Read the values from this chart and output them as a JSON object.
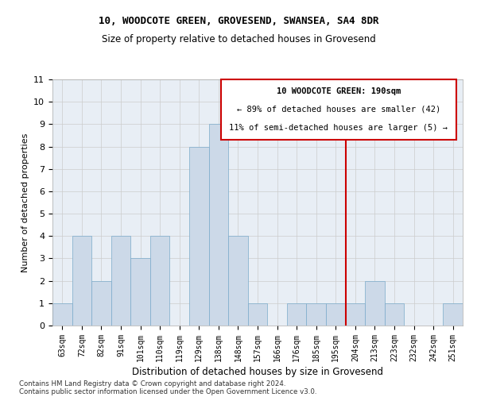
{
  "title1": "10, WOODCOTE GREEN, GROVESEND, SWANSEA, SA4 8DR",
  "title2": "Size of property relative to detached houses in Grovesend",
  "xlabel": "Distribution of detached houses by size in Grovesend",
  "ylabel": "Number of detached properties",
  "categories": [
    "63sqm",
    "72sqm",
    "82sqm",
    "91sqm",
    "101sqm",
    "110sqm",
    "119sqm",
    "129sqm",
    "138sqm",
    "148sqm",
    "157sqm",
    "166sqm",
    "176sqm",
    "185sqm",
    "195sqm",
    "204sqm",
    "213sqm",
    "223sqm",
    "232sqm",
    "242sqm",
    "251sqm"
  ],
  "values": [
    1,
    4,
    2,
    4,
    3,
    4,
    0,
    8,
    9,
    4,
    1,
    0,
    1,
    1,
    1,
    1,
    2,
    1,
    0,
    0,
    1
  ],
  "bar_color": "#ccd9e8",
  "bar_edge_color": "#7aaaca",
  "bar_linewidth": 0.5,
  "vline_x": 14.5,
  "vline_color": "#cc0000",
  "annotation_title": "10 WOODCOTE GREEN: 190sqm",
  "annotation_line2": "← 89% of detached houses are smaller (42)",
  "annotation_line3": "11% of semi-detached houses are larger (5) →",
  "annotation_box_color": "#cc0000",
  "ylim": [
    0,
    11
  ],
  "yticks": [
    0,
    1,
    2,
    3,
    4,
    5,
    6,
    7,
    8,
    9,
    10,
    11
  ],
  "grid_color": "#cccccc",
  "bg_color": "#e8eef5",
  "footer1": "Contains HM Land Registry data © Crown copyright and database right 2024.",
  "footer2": "Contains public sector information licensed under the Open Government Licence v3.0."
}
